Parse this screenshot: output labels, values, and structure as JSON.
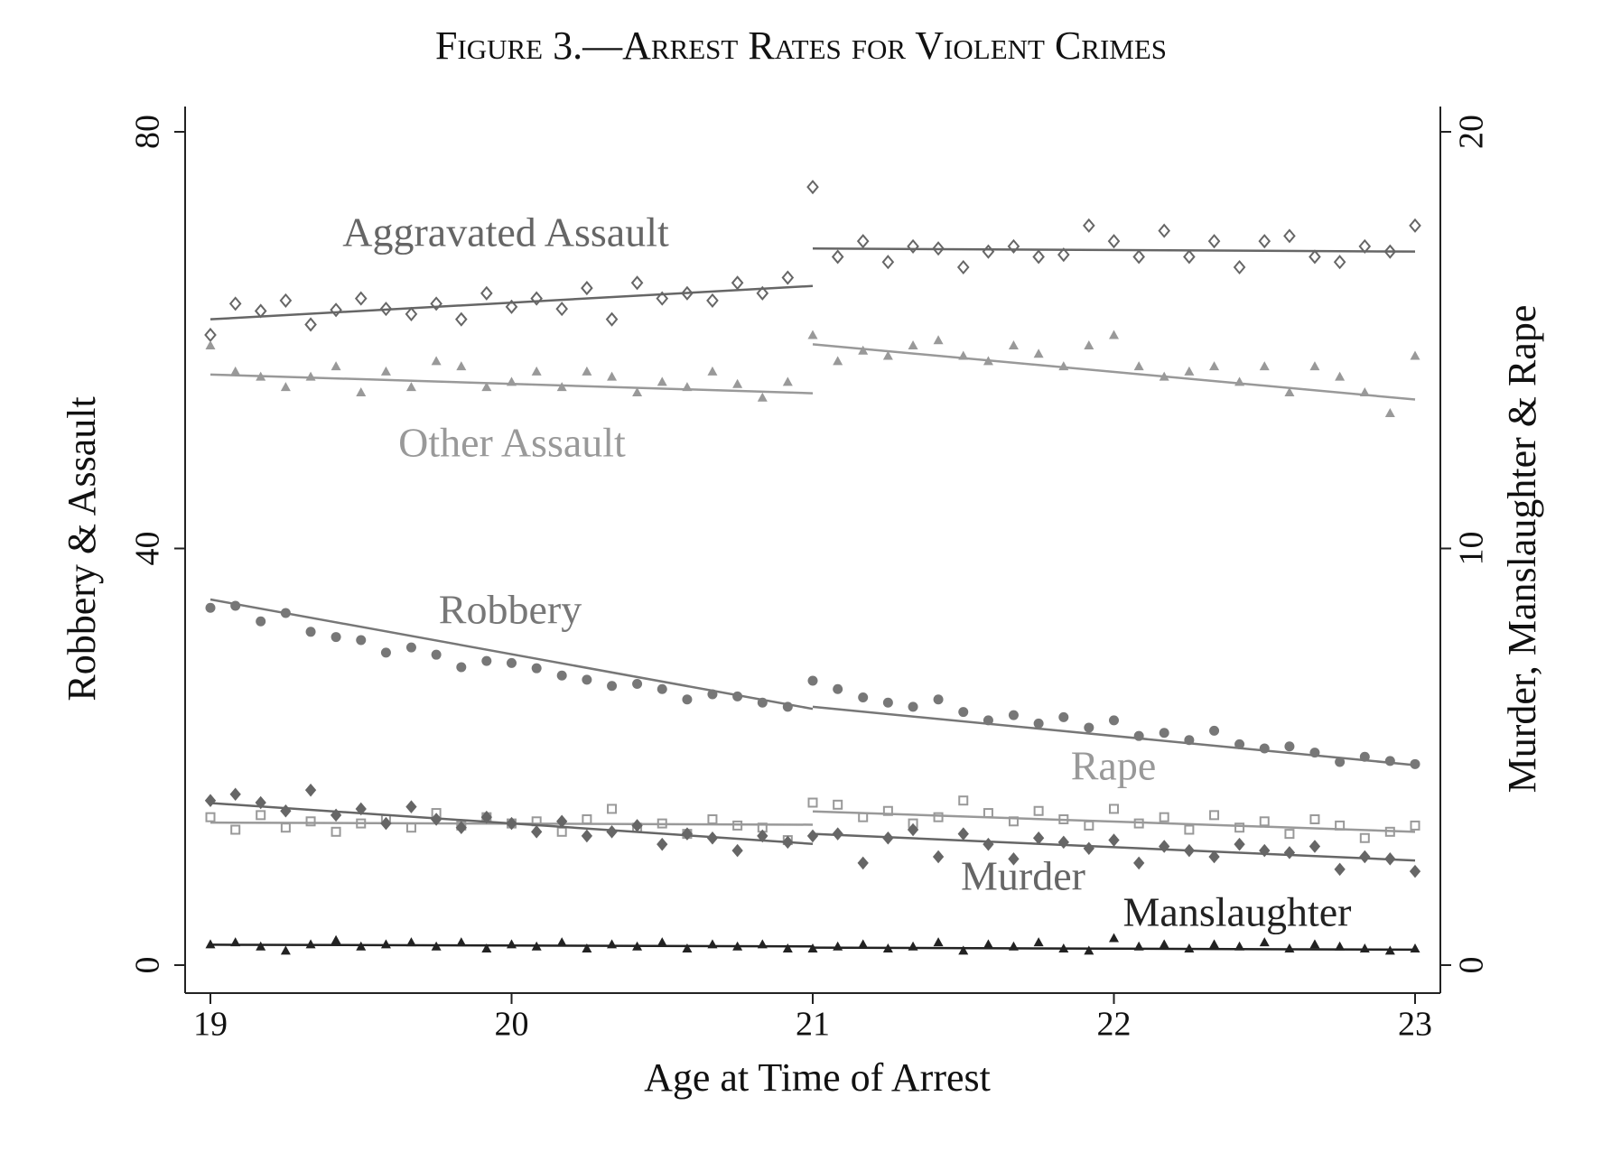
{
  "chart_data": {
    "type": "scatter",
    "title": "Figure 3.—Arrest Rates for Violent Crimes",
    "x_label": "Age at Time of Arrest",
    "y_label": "Robbery & Assault",
    "y2_label": "Murder, Manslaughter & Rape",
    "xlim": [
      19,
      23
    ],
    "xticks": [
      19,
      20,
      21,
      22,
      23
    ],
    "ylim": [
      0,
      80
    ],
    "yticks": [
      0,
      40,
      80
    ],
    "y2lim": [
      0,
      20
    ],
    "y2ticks": [
      0,
      10,
      20
    ],
    "x": [
      19,
      19.083,
      19.167,
      19.25,
      19.333,
      19.417,
      19.5,
      19.583,
      19.667,
      19.75,
      19.833,
      19.917,
      20,
      20.083,
      20.167,
      20.25,
      20.333,
      20.417,
      20.5,
      20.583,
      20.667,
      20.75,
      20.833,
      20.917,
      21,
      21.083,
      21.167,
      21.25,
      21.333,
      21.417,
      21.5,
      21.583,
      21.667,
      21.75,
      21.833,
      21.917,
      22,
      22.083,
      22.167,
      22.25,
      22.333,
      22.417,
      22.5,
      22.583,
      22.667,
      22.75,
      22.833,
      22.917,
      23
    ],
    "series": [
      {
        "name": "Aggravated Assault",
        "color": "#666666",
        "marker": "diamond-open",
        "values": [
          60.5,
          63.5,
          62.8,
          63.8,
          61.5,
          62.9,
          64,
          63,
          62.5,
          63.5,
          62,
          64.5,
          63.2,
          64,
          63,
          65,
          62,
          65.5,
          64,
          64.5,
          63.8,
          65.5,
          64.5,
          66,
          74.7,
          68,
          69.5,
          67.5,
          69,
          68.8,
          67,
          68.5,
          69,
          68,
          68.2,
          71,
          69.5,
          68,
          70.5,
          68,
          69.5,
          67,
          69.5,
          70,
          68,
          67.5,
          69,
          68.5,
          71
        ],
        "fit": [
          {
            "x": [
              19,
              21
            ],
            "values": [
              62,
              65.2
            ]
          },
          {
            "x": [
              21,
              23
            ],
            "values": [
              68.8,
              68.5
            ]
          }
        ]
      },
      {
        "name": "Other Assault",
        "color": "#999999",
        "marker": "triangle",
        "values": [
          59.5,
          57,
          56.5,
          55.5,
          56.5,
          57.5,
          55,
          57,
          55.5,
          58,
          57.5,
          55.5,
          56,
          57,
          55.5,
          57,
          56.5,
          55,
          56,
          55.5,
          57,
          55.8,
          54.5,
          56,
          60.5,
          58,
          59,
          58.5,
          59.5,
          60,
          58.5,
          58,
          59.5,
          58.7,
          57.5,
          59.5,
          60.5,
          57.5,
          56.5,
          57,
          57.5,
          56,
          57.5,
          55,
          57.5,
          56.5,
          55,
          53,
          58.5
        ],
        "fit": [
          {
            "x": [
              19,
              21
            ],
            "values": [
              56.7,
              54.9
            ]
          },
          {
            "x": [
              21,
              23
            ],
            "values": [
              59.6,
              54.3
            ]
          }
        ]
      },
      {
        "name": "Robbery",
        "color": "#777777",
        "marker": "circle",
        "values": [
          34.3,
          34.5,
          33,
          33.8,
          32,
          31.5,
          31.2,
          30,
          30.5,
          29.8,
          28.6,
          29.2,
          29,
          28.5,
          27.8,
          27.4,
          26.8,
          27,
          26.5,
          25.5,
          26,
          25.8,
          25.2,
          24.8,
          27.3,
          26.5,
          25.7,
          25.2,
          24.8,
          25.5,
          24.3,
          23.5,
          24,
          23.2,
          23.8,
          22.8,
          23.5,
          22,
          22.3,
          21.6,
          22.5,
          21.2,
          20.8,
          21,
          20.4,
          19.5,
          20,
          19.6,
          19.3
        ],
        "fit": [
          {
            "x": [
              19,
              21
            ],
            "values": [
              35.1,
              24.6
            ]
          },
          {
            "x": [
              21,
              23
            ],
            "values": [
              24.8,
              19.2
            ]
          }
        ]
      },
      {
        "name": "Rape",
        "color": "#999999",
        "marker": "square-open",
        "axis": "y2",
        "values": [
          3.55,
          3.25,
          3.6,
          3.3,
          3.45,
          3.2,
          3.4,
          3.5,
          3.3,
          3.65,
          3.35,
          3.55,
          3.4,
          3.45,
          3.2,
          3.5,
          3.75,
          3.3,
          3.4,
          3.15,
          3.5,
          3.35,
          3.3,
          3.0,
          3.9,
          3.85,
          3.55,
          3.7,
          3.4,
          3.55,
          3.95,
          3.65,
          3.45,
          3.7,
          3.5,
          3.35,
          3.75,
          3.4,
          3.55,
          3.25,
          3.6,
          3.3,
          3.45,
          3.15,
          3.5,
          3.35,
          3.05,
          3.2,
          3.35
        ],
        "fit": [
          {
            "x": [
              19,
              21
            ],
            "values": [
              3.42,
              3.37
            ]
          },
          {
            "x": [
              21,
              23
            ],
            "values": [
              3.69,
              3.2
            ]
          }
        ]
      },
      {
        "name": "Murder",
        "color": "#666666",
        "marker": "diamond",
        "axis": "y2",
        "values": [
          3.95,
          4.1,
          3.9,
          3.7,
          4.2,
          3.6,
          3.75,
          3.4,
          3.8,
          3.5,
          3.3,
          3.55,
          3.4,
          3.2,
          3.45,
          3.1,
          3.2,
          3.35,
          2.9,
          3.15,
          3.05,
          2.75,
          3.1,
          2.95,
          3.1,
          3.15,
          2.45,
          3.05,
          3.25,
          2.6,
          3.15,
          2.9,
          2.55,
          3.05,
          2.95,
          2.8,
          3,
          2.45,
          2.85,
          2.75,
          2.6,
          2.9,
          2.75,
          2.7,
          2.85,
          2.3,
          2.6,
          2.55,
          2.25
        ],
        "fit": [
          {
            "x": [
              19,
              21
            ],
            "values": [
              3.89,
              2.91
            ]
          },
          {
            "x": [
              21,
              23
            ],
            "values": [
              3.15,
              2.51
            ]
          }
        ]
      },
      {
        "name": "Manslaughter",
        "color": "#222222",
        "marker": "triangle",
        "axis": "y2",
        "values": [
          0.5,
          0.55,
          0.45,
          0.35,
          0.5,
          0.6,
          0.45,
          0.5,
          0.55,
          0.45,
          0.55,
          0.4,
          0.5,
          0.45,
          0.55,
          0.4,
          0.5,
          0.45,
          0.55,
          0.4,
          0.5,
          0.45,
          0.5,
          0.4,
          0.4,
          0.45,
          0.5,
          0.4,
          0.45,
          0.55,
          0.35,
          0.5,
          0.45,
          0.55,
          0.4,
          0.35,
          0.65,
          0.45,
          0.5,
          0.4,
          0.5,
          0.45,
          0.55,
          0.4,
          0.5,
          0.45,
          0.4,
          0.35,
          0.4
        ],
        "fit": [
          {
            "x": [
              19,
              21
            ],
            "values": [
              0.49,
              0.45
            ]
          },
          {
            "x": [
              21,
              23
            ],
            "values": [
              0.42,
              0.37
            ]
          }
        ]
      }
    ]
  }
}
